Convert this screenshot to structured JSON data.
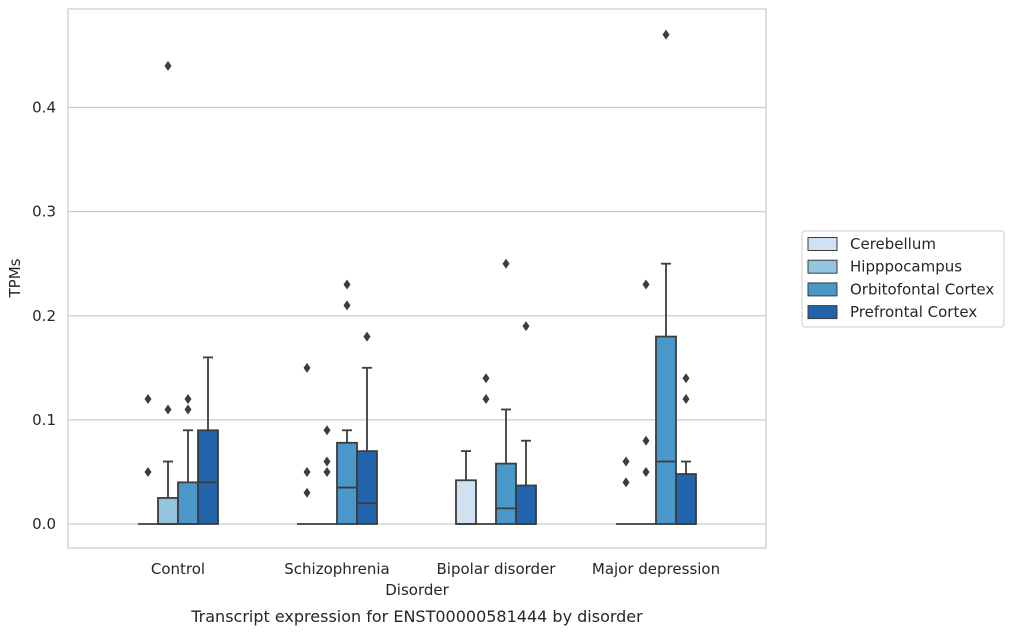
{
  "chart_data": {
    "type": "box",
    "caption": "Transcript expression for ENST00000581444 by disorder",
    "xlabel": "Disorder",
    "ylabel": "TPMs",
    "ylim": [
      -0.022,
      0.495
    ],
    "yticks": [
      "0.0",
      "0.1",
      "0.2",
      "0.3",
      "0.4"
    ],
    "ytick_values": [
      0.0,
      0.1,
      0.2,
      0.3,
      0.4
    ],
    "grid": "horizontal",
    "legend_position": "right",
    "categories": [
      "Control",
      "Schizophrenia",
      "Bipolar disorder",
      "Major depression"
    ],
    "series": [
      {
        "name": "Cerebellum",
        "color": "#d0e1f2",
        "boxes": [
          {
            "q1": 0.0,
            "median": 0.0,
            "q3": 0.0,
            "whislo": 0.0,
            "whishi": 0.0,
            "fliers": [
              0.05,
              0.12
            ]
          },
          {
            "q1": 0.0,
            "median": 0.0,
            "q3": 0.0,
            "whislo": 0.0,
            "whishi": 0.0,
            "fliers": [
              0.03,
              0.05,
              0.15
            ]
          },
          {
            "q1": 0.0,
            "median": 0.0,
            "q3": 0.042,
            "whislo": 0.0,
            "whishi": 0.07,
            "fliers": []
          },
          {
            "q1": 0.0,
            "median": 0.0,
            "q3": 0.0,
            "whislo": 0.0,
            "whishi": 0.0,
            "fliers": [
              0.04,
              0.06
            ]
          }
        ]
      },
      {
        "name": "Hipppocampus",
        "color": "#94c4df",
        "boxes": [
          {
            "q1": 0.0,
            "median": 0.0,
            "q3": 0.025,
            "whislo": 0.0,
            "whishi": 0.06,
            "fliers": [
              0.11,
              0.44
            ]
          },
          {
            "q1": 0.0,
            "median": 0.0,
            "q3": 0.0,
            "whislo": 0.0,
            "whishi": 0.0,
            "fliers": [
              0.05,
              0.06,
              0.09
            ]
          },
          {
            "q1": 0.0,
            "median": 0.0,
            "q3": 0.0,
            "whislo": 0.0,
            "whishi": 0.0,
            "fliers": [
              0.12,
              0.14
            ]
          },
          {
            "q1": 0.0,
            "median": 0.0,
            "q3": 0.0,
            "whislo": 0.0,
            "whishi": 0.0,
            "fliers": [
              0.05,
              0.08,
              0.23
            ]
          }
        ]
      },
      {
        "name": "Orbitofontal Cortex",
        "color": "#4a98c9",
        "boxes": [
          {
            "q1": 0.0,
            "median": 0.0,
            "q3": 0.04,
            "whislo": 0.0,
            "whishi": 0.09,
            "fliers": [
              0.11,
              0.12
            ]
          },
          {
            "q1": 0.0,
            "median": 0.035,
            "q3": 0.078,
            "whislo": 0.0,
            "whishi": 0.09,
            "fliers": [
              0.21,
              0.23
            ]
          },
          {
            "q1": 0.0,
            "median": 0.015,
            "q3": 0.058,
            "whislo": 0.0,
            "whishi": 0.11,
            "fliers": [
              0.25
            ]
          },
          {
            "q1": 0.0,
            "median": 0.06,
            "q3": 0.18,
            "whislo": 0.0,
            "whishi": 0.25,
            "fliers": [
              0.47
            ]
          }
        ]
      },
      {
        "name": "Prefrontal Cortex",
        "color": "#2164ab",
        "boxes": [
          {
            "q1": 0.0,
            "median": 0.04,
            "q3": 0.09,
            "whislo": 0.0,
            "whishi": 0.16,
            "fliers": []
          },
          {
            "q1": 0.0,
            "median": 0.02,
            "q3": 0.07,
            "whislo": 0.0,
            "whishi": 0.15,
            "fliers": [
              0.18
            ]
          },
          {
            "q1": 0.0,
            "median": 0.0,
            "q3": 0.037,
            "whislo": 0.0,
            "whishi": 0.08,
            "fliers": [
              0.19
            ]
          },
          {
            "q1": 0.0,
            "median": 0.0,
            "q3": 0.048,
            "whislo": 0.0,
            "whishi": 0.06,
            "fliers": [
              0.12,
              0.14
            ]
          }
        ]
      }
    ]
  }
}
